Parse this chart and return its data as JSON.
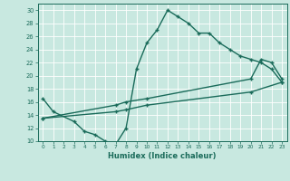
{
  "title": "",
  "xlabel": "Humidex (Indice chaleur)",
  "bg_color": "#c8e8e0",
  "grid_color": "#ffffff",
  "line_color": "#1a6b5a",
  "xlim": [
    -0.5,
    23.5
  ],
  "ylim": [
    10,
    31
  ],
  "yticks": [
    10,
    12,
    14,
    16,
    18,
    20,
    22,
    24,
    26,
    28,
    30
  ],
  "xticks": [
    0,
    1,
    2,
    3,
    4,
    5,
    6,
    7,
    8,
    9,
    10,
    11,
    12,
    13,
    14,
    15,
    16,
    17,
    18,
    19,
    20,
    21,
    22,
    23
  ],
  "line1_x": [
    0,
    1,
    3,
    4,
    5,
    6,
    7,
    8,
    9,
    10,
    11,
    12,
    13,
    14,
    15,
    16,
    17,
    18,
    19,
    20,
    21,
    22,
    23
  ],
  "line1_y": [
    16.5,
    14.5,
    13.0,
    11.5,
    11.0,
    10.0,
    9.5,
    12.0,
    21.0,
    25.0,
    27.0,
    30.0,
    29.0,
    28.0,
    26.5,
    26.5,
    25.0,
    24.0,
    23.0,
    22.5,
    22.0,
    21.0,
    19.0
  ],
  "line2_x": [
    0,
    7,
    8,
    10,
    20,
    21,
    22,
    23
  ],
  "line2_y": [
    13.5,
    15.5,
    16.0,
    16.5,
    19.5,
    22.5,
    22.0,
    19.5
  ],
  "line3_x": [
    0,
    7,
    8,
    10,
    20,
    23
  ],
  "line3_y": [
    13.5,
    14.5,
    14.8,
    15.5,
    17.5,
    19.0
  ]
}
